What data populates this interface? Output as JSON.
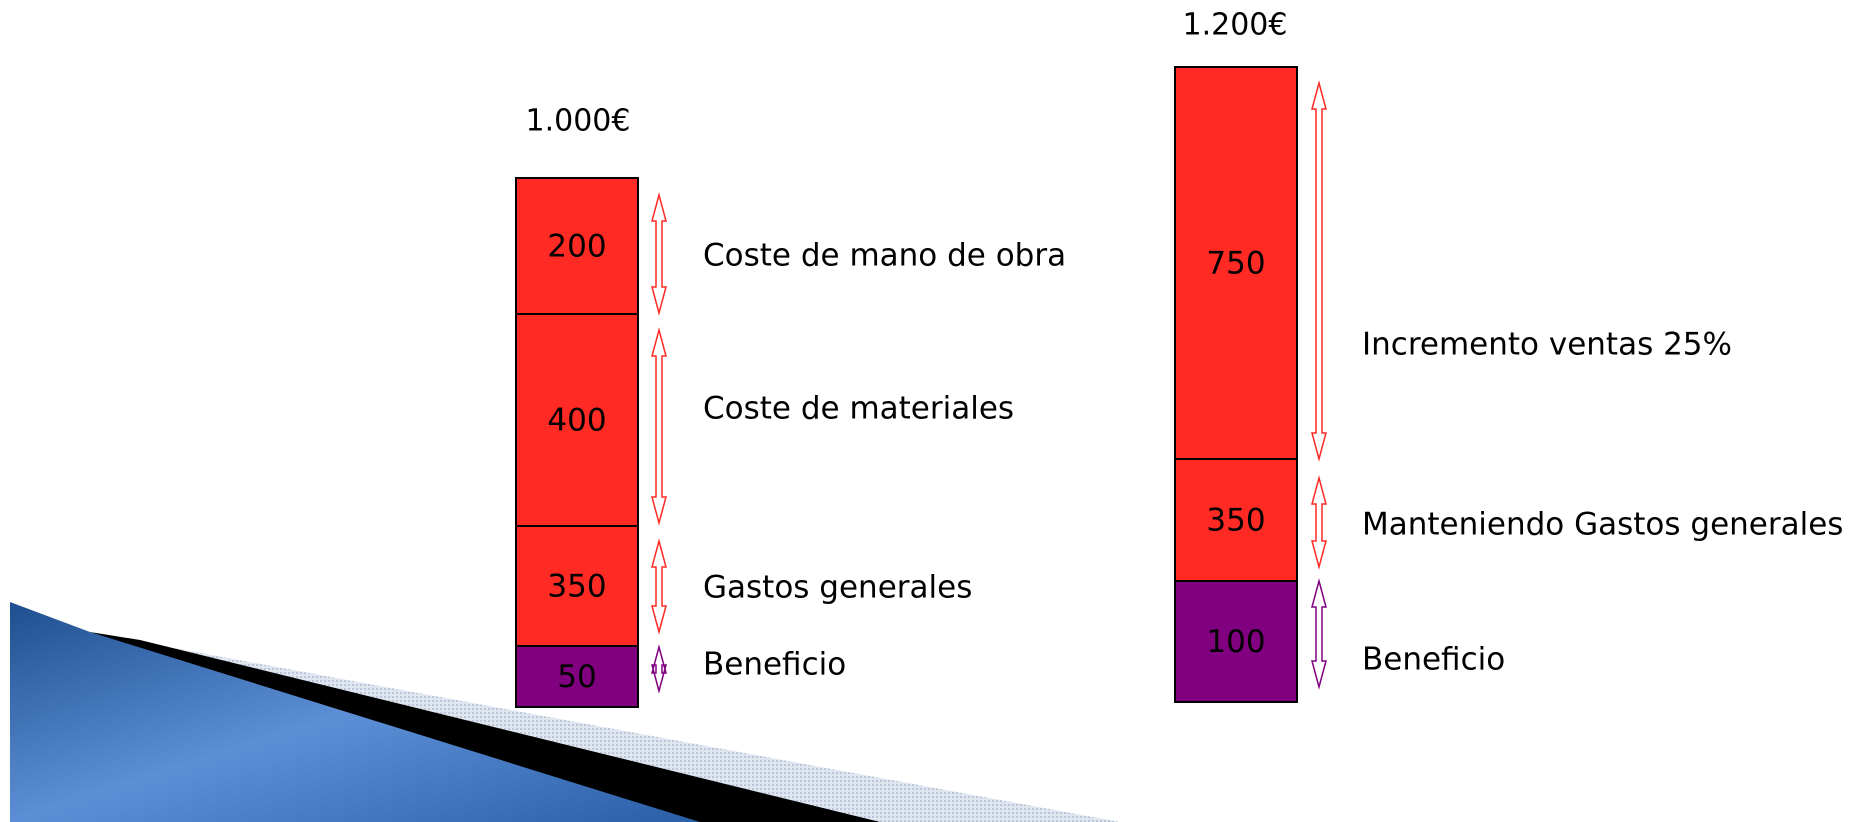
{
  "columns": [
    {
      "total": "1.000€",
      "segments": [
        {
          "value": 200,
          "label": "Coste de mano de obra"
        },
        {
          "value": 400,
          "label": "Coste de materiales"
        },
        {
          "value": 350,
          "label": "Gastos generales"
        },
        {
          "value": 50,
          "label": "Beneficio"
        }
      ]
    },
    {
      "total": "1.200€",
      "segments": [
        {
          "value": 750,
          "label": "Incremento ventas 25%"
        },
        {
          "value": 350,
          "label": "Manteniendo Gastos generales"
        },
        {
          "value": 100,
          "label": "Beneficio"
        }
      ]
    }
  ]
}
